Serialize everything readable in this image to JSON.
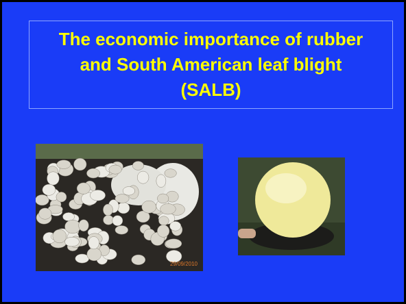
{
  "slide": {
    "title": "The economic importance of rubber and South American leaf blight (SALB)",
    "photo_date": "29/09/2010"
  }
}
